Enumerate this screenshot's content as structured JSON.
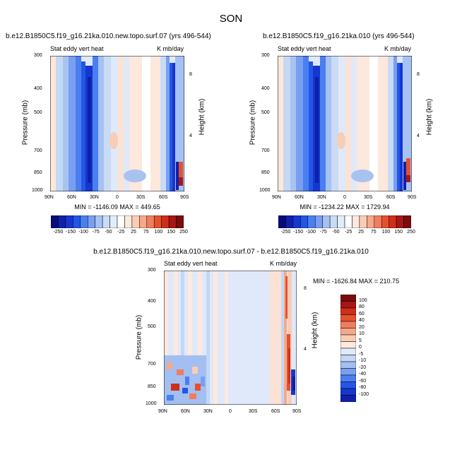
{
  "season": "SON",
  "panels": [
    {
      "title": "b.e12.B1850C5.f19_g16.21ka.010.new.topo.surf.07 (yrs 496-544)",
      "left_label": "Stat eddy vert heat",
      "right_label": "K mb/day",
      "minmax": "MIN = -1146.09   MAX = 449.65"
    },
    {
      "title": "b.e12.B1850C5.f19_g16.21ka.010 (yrs 496-544)",
      "left_label": "Stat eddy vert heat",
      "right_label": "K mb/day",
      "minmax": "MIN = -1234.22   MAX = 1729.94"
    },
    {
      "title": "b.e12.B1850C5.f19_g16.21ka.010.new.topo.surf.07 - b.e12.B1850C5.f19_g16.21ka.010",
      "left_label": "Stat eddy vert heat",
      "right_label": "K mb/day",
      "minmax": "MIN = -1626.84   MAX = 210.75"
    }
  ],
  "axes": {
    "ylabel": "Pressure (mb)",
    "y2label": "Height (km)",
    "pressure_ticks": [
      "300",
      "400",
      "500",
      "700",
      "850",
      "1000"
    ],
    "height_ticks": [
      "8",
      "4"
    ],
    "lat_ticks": [
      "90N",
      "60N",
      "30N",
      "0",
      "30S",
      "60S",
      "90S"
    ]
  },
  "colorbars": {
    "top": {
      "labels": [
        "-250",
        "-150",
        "-100",
        "-75",
        "-50",
        "-25",
        "25",
        "75",
        "100",
        "150",
        "250"
      ],
      "colors": [
        "#08097a",
        "#0f20a8",
        "#1536cf",
        "#2456e6",
        "#4a7ff0",
        "#799ff2",
        "#a6c2f2",
        "#c9dbf5",
        "#e2ecfa",
        "#ffffff",
        "#fde9dd",
        "#f9cdb5",
        "#f5a98a",
        "#ef7d5e",
        "#e5512f",
        "#cf2e1a",
        "#a81616",
        "#7a0c0c"
      ]
    },
    "diff": {
      "labels": [
        "100",
        "80",
        "60",
        "40",
        "20",
        "10",
        "5",
        "0",
        "-5",
        "-10",
        "-20",
        "-40",
        "-60",
        "-80",
        "-100"
      ],
      "colors": [
        "#7a0c0c",
        "#a81616",
        "#cf2e1a",
        "#e5512f",
        "#ef7d5e",
        "#f5a98a",
        "#f9cdb5",
        "#fde9dd",
        "#dfeafa",
        "#c4d7f5",
        "#a3bff1",
        "#7a9ff0",
        "#4a7ff0",
        "#2456e6",
        "#1536cf",
        "#0f20a8"
      ]
    }
  },
  "chart_data": [
    {
      "type": "heatmap",
      "title": "b.e12.B1850C5.f19_g16.21ka.010.new.topo.surf.07 (yrs 496-544)",
      "variable": "Stat eddy vert heat",
      "units": "K mb/day",
      "x": [
        "90N",
        "60N",
        "30N",
        "0",
        "30S",
        "60S",
        "90S"
      ],
      "y_pressure_mb": [
        300,
        400,
        500,
        700,
        850,
        1000
      ],
      "min": -1146.09,
      "max": 449.65
    },
    {
      "type": "heatmap",
      "title": "b.e12.B1850C5.f19_g16.21ka.010 (yrs 496-544)",
      "variable": "Stat eddy vert heat",
      "units": "K mb/day",
      "x": [
        "90N",
        "60N",
        "30N",
        "0",
        "30S",
        "60S",
        "90S"
      ],
      "y_pressure_mb": [
        300,
        400,
        500,
        700,
        850,
        1000
      ],
      "min": -1234.22,
      "max": 1729.94
    },
    {
      "type": "heatmap",
      "title": "b.e12.B1850C5.f19_g16.21ka.010.new.topo.surf.07 - b.e12.B1850C5.f19_g16.21ka.010",
      "variable": "Stat eddy vert heat",
      "units": "K mb/day",
      "x": [
        "90N",
        "60N",
        "30N",
        "0",
        "30S",
        "60S",
        "90S"
      ],
      "y_pressure_mb": [
        300,
        400,
        500,
        700,
        850,
        1000
      ],
      "min": -1626.84,
      "max": 210.75
    }
  ]
}
